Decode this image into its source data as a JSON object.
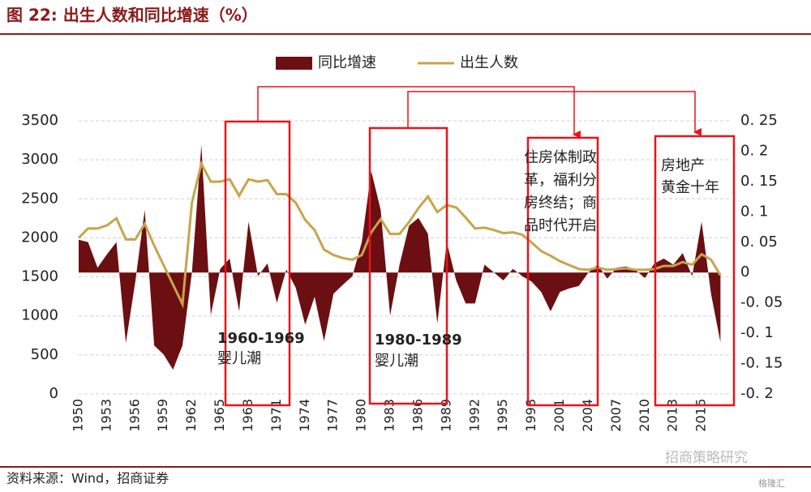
{
  "chart_data": {
    "type": "area-line",
    "title": "图 22:  出生人数和同比增速（%）",
    "source": "资料来源：Wind，招商证券",
    "watermark": [
      "招商策略研究",
      "格隆汇"
    ],
    "x": [
      1950,
      1951,
      1952,
      1953,
      1954,
      1955,
      1956,
      1957,
      1958,
      1959,
      1960,
      1961,
      1962,
      1963,
      1964,
      1965,
      1966,
      1967,
      1968,
      1969,
      1970,
      1971,
      1972,
      1973,
      1974,
      1975,
      1976,
      1977,
      1978,
      1979,
      1980,
      1981,
      1982,
      1983,
      1984,
      1985,
      1986,
      1987,
      1988,
      1989,
      1990,
      1991,
      1992,
      1993,
      1994,
      1995,
      1996,
      1997,
      1998,
      1999,
      2000,
      2001,
      2002,
      2003,
      2004,
      2005,
      2006,
      2007,
      2008,
      2009,
      2010,
      2011,
      2012,
      2013,
      2014,
      2015,
      2016,
      2017,
      2018
    ],
    "xlim": [
      1950,
      2019
    ],
    "xticks": [
      1950,
      1953,
      1956,
      1959,
      1962,
      1965,
      1968,
      1971,
      1974,
      1977,
      1980,
      1983,
      1986,
      1989,
      1992,
      1995,
      1998,
      2001,
      2004,
      2007,
      2010,
      2013,
      2016
    ],
    "ylim": [
      0,
      3500
    ],
    "yticks": [
      0,
      500,
      1000,
      1500,
      2000,
      2500,
      3000,
      3500
    ],
    "y2lim": [
      -0.2,
      0.25
    ],
    "y2ticks": [
      {
        "value": -0.2,
        "label": "-0. 2"
      },
      {
        "value": -0.15,
        "label": "-0. 15"
      },
      {
        "value": -0.1,
        "label": "-0. 1"
      },
      {
        "value": -0.05,
        "label": "-0. 05"
      },
      {
        "value": 0,
        "label": "0"
      },
      {
        "value": 0.05,
        "label": "0. 05"
      },
      {
        "value": 0.1,
        "label": "0. 1"
      },
      {
        "value": 0.15,
        "label": "0. 15"
      },
      {
        "value": 0.2,
        "label": "0. 2"
      },
      {
        "value": 0.25,
        "label": "0. 25"
      }
    ],
    "grid": true,
    "series": [
      {
        "name": "同比增速",
        "color": "#6b0f12",
        "axis": "y2",
        "kind": "area",
        "values": [
          0.054,
          0.05,
          0.008,
          0.03,
          0.05,
          -0.116,
          -0.015,
          0.103,
          -0.12,
          -0.135,
          -0.16,
          -0.12,
          0,
          0.21,
          -0.07,
          0.006,
          0.023,
          -0.064,
          0.084,
          -0.006,
          0.015,
          -0.05,
          0.005,
          -0.025,
          -0.086,
          -0.04,
          -0.113,
          -0.035,
          -0.02,
          -0.006,
          0.05,
          0.167,
          0.103,
          -0.071,
          0.013,
          0.077,
          0.09,
          0.064,
          -0.084,
          0.05,
          -0.013,
          -0.051,
          -0.051,
          0.013,
          0,
          -0.013,
          0.006,
          -0.006,
          -0.015,
          -0.032,
          -0.064,
          -0.032,
          -0.026,
          -0.022,
          0,
          0.013,
          -0.01,
          0.008,
          0.01,
          0.004,
          -0.009,
          0.015,
          0.023,
          0.013,
          0.032,
          -0.006,
          0.084,
          -0.035,
          -0.115
        ]
      },
      {
        "name": "出生人数",
        "color": "#c8a44a",
        "kind": "line",
        "values": [
          2000,
          2120,
          2120,
          2160,
          2250,
          1980,
          1980,
          2180,
          1900,
          1650,
          1400,
          1150,
          2450,
          2950,
          2720,
          2720,
          2750,
          2540,
          2750,
          2720,
          2740,
          2560,
          2560,
          2450,
          2230,
          2100,
          1850,
          1780,
          1740,
          1720,
          1780,
          2070,
          2240,
          2050,
          2050,
          2200,
          2380,
          2530,
          2330,
          2420,
          2390,
          2260,
          2120,
          2130,
          2100,
          2060,
          2070,
          2040,
          1940,
          1830,
          1770,
          1700,
          1650,
          1600,
          1590,
          1620,
          1590,
          1600,
          1610,
          1590,
          1590,
          1600,
          1640,
          1640,
          1690,
          1655,
          1790,
          1720,
          1520
        ]
      }
    ],
    "annotations": [
      {
        "lines": [
          "1960-1969",
          "婴儿潮"
        ]
      },
      {
        "lines": [
          "1980-1989",
          "婴儿潮"
        ]
      },
      {
        "lines": [
          "住房体制政",
          "革，福利分",
          "房终结；商",
          "品时代开启"
        ]
      },
      {
        "lines": [
          "房地产",
          "黄金十年"
        ]
      }
    ]
  }
}
